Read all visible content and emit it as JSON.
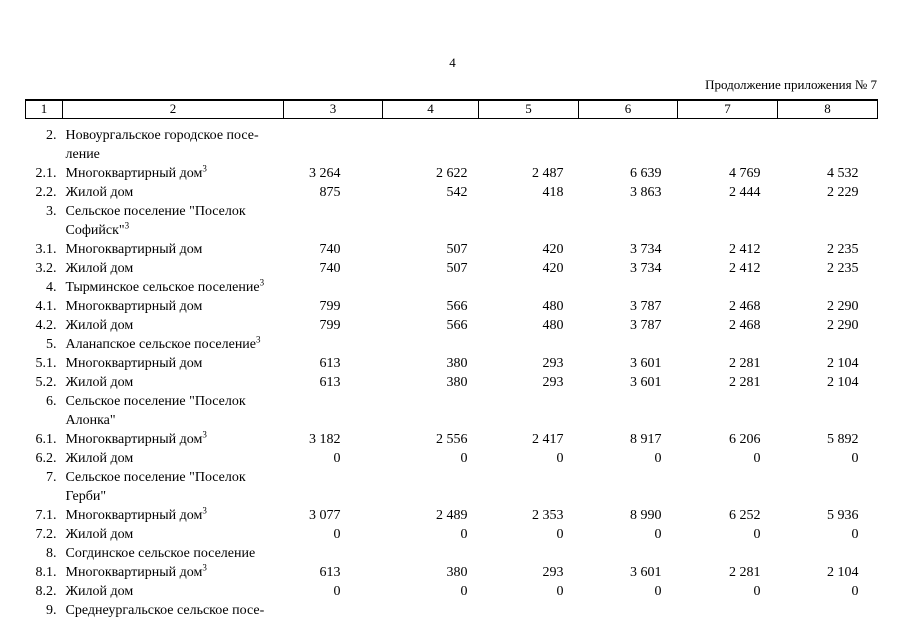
{
  "page": {
    "number": "4",
    "continuation": "Продолжение приложения № 7"
  },
  "table": {
    "header": [
      "1",
      "2",
      "3",
      "4",
      "5",
      "6",
      "7",
      "8"
    ],
    "rows": [
      {
        "num": "2.",
        "name": "Новоургальское городское посе-\nление",
        "sup": "",
        "values": []
      },
      {
        "num": "2.1.",
        "name": "Многоквартирный дом",
        "sup": "3",
        "values": [
          "3 264",
          "2 622",
          "2 487",
          "6 639",
          "4 769",
          "4 532"
        ]
      },
      {
        "num": "2.2.",
        "name": "Жилой дом",
        "sup": "",
        "values": [
          "875",
          "542",
          "418",
          "3 863",
          "2 444",
          "2 229"
        ]
      },
      {
        "num": "3.",
        "name": "Сельское поселение \"Поселок\nСофийск\"",
        "sup": "3",
        "values": []
      },
      {
        "num": "3.1.",
        "name": "Многоквартирный дом",
        "sup": "",
        "values": [
          "740",
          "507",
          "420",
          "3 734",
          "2 412",
          "2 235"
        ]
      },
      {
        "num": "3.2.",
        "name": "Жилой дом",
        "sup": "",
        "values": [
          "740",
          "507",
          "420",
          "3 734",
          "2 412",
          "2 235"
        ]
      },
      {
        "num": "4.",
        "name": "Тырминское сельское поселение",
        "sup": "3",
        "values": []
      },
      {
        "num": "4.1.",
        "name": "Многоквартирный дом",
        "sup": "",
        "values": [
          "799",
          "566",
          "480",
          "3 787",
          "2 468",
          "2 290"
        ]
      },
      {
        "num": "4.2.",
        "name": "Жилой дом",
        "sup": "",
        "values": [
          "799",
          "566",
          "480",
          "3 787",
          "2 468",
          "2 290"
        ]
      },
      {
        "num": "5.",
        "name": "Аланапское сельское поселение",
        "sup": "3",
        "values": []
      },
      {
        "num": "5.1.",
        "name": "Многоквартирный дом",
        "sup": "",
        "values": [
          "613",
          "380",
          "293",
          "3 601",
          "2 281",
          "2 104"
        ]
      },
      {
        "num": "5.2.",
        "name": "Жилой дом",
        "sup": "",
        "values": [
          "613",
          "380",
          "293",
          "3 601",
          "2 281",
          "2 104"
        ]
      },
      {
        "num": "6.",
        "name": "Сельское поселение \"Поселок\nАлонка\"",
        "sup": "",
        "values": []
      },
      {
        "num": "6.1.",
        "name": "Многоквартирный дом",
        "sup": "3",
        "values": [
          "3 182",
          "2 556",
          "2 417",
          "8 917",
          "6 206",
          "5 892"
        ]
      },
      {
        "num": "6.2.",
        "name": "Жилой дом",
        "sup": "",
        "values": [
          "0",
          "0",
          "0",
          "0",
          "0",
          "0"
        ]
      },
      {
        "num": "7.",
        "name": "Сельское поселение \"Поселок\nГерби\"",
        "sup": "",
        "values": []
      },
      {
        "num": "7.1.",
        "name": "Многоквартирный дом",
        "sup": "3",
        "values": [
          "3 077",
          "2 489",
          "2 353",
          "8 990",
          "6 252",
          "5 936"
        ]
      },
      {
        "num": "7.2.",
        "name": "Жилой дом",
        "sup": "",
        "values": [
          "0",
          "0",
          "0",
          "0",
          "0",
          "0"
        ]
      },
      {
        "num": "8.",
        "name": "Согдинское сельское поселение",
        "sup": "",
        "values": []
      },
      {
        "num": "8.1.",
        "name": "Многоквартирный дом",
        "sup": "3",
        "values": [
          "613",
          "380",
          "293",
          "3 601",
          "2 281",
          "2 104"
        ]
      },
      {
        "num": "8.2.",
        "name": "Жилой дом",
        "sup": "",
        "values": [
          "0",
          "0",
          "0",
          "0",
          "0",
          "0"
        ]
      },
      {
        "num": "9.",
        "name": "Среднеургальское сельское посе-",
        "sup": "",
        "values": []
      }
    ]
  }
}
